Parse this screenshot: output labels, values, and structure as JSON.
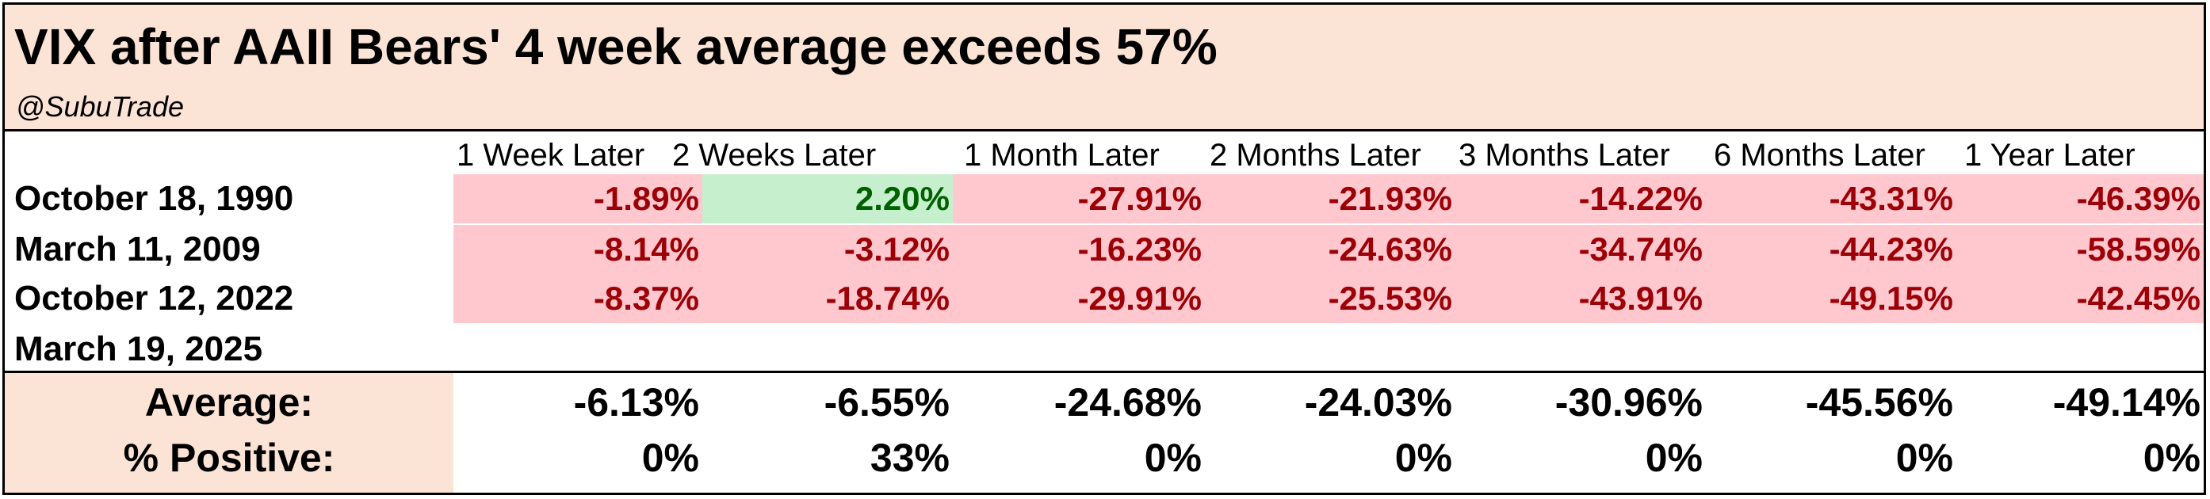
{
  "title": "VIX after AAII Bears' 4 week average exceeds 57%",
  "subtitle": "@SubuTrade",
  "colors": {
    "header_bg": "#fbe4d5",
    "negative_bg": "#ffc7ce",
    "negative_text": "#9c0006",
    "positive_bg": "#c6efce",
    "positive_text": "#006100"
  },
  "chart_data": {
    "type": "table",
    "columns": [
      "1 Week Later",
      "2 Weeks Later",
      "1 Month Later",
      "2 Months Later",
      "3 Months Later",
      "6 Months Later",
      "1 Year Later"
    ],
    "rows": [
      {
        "label": "October 18, 1990",
        "values": [
          "-1.89%",
          "2.20%",
          "-27.91%",
          "-21.93%",
          "-14.22%",
          "-43.31%",
          "-46.39%"
        ]
      },
      {
        "label": "March 11, 2009",
        "values": [
          "-8.14%",
          "-3.12%",
          "-16.23%",
          "-24.63%",
          "-34.74%",
          "-44.23%",
          "-58.59%"
        ]
      },
      {
        "label": "October 12, 2022",
        "values": [
          "-8.37%",
          "-18.74%",
          "-29.91%",
          "-25.53%",
          "-43.91%",
          "-49.15%",
          "-42.45%"
        ]
      },
      {
        "label": "March 19, 2025",
        "values": []
      }
    ],
    "summary": [
      {
        "label": "Average:",
        "values": [
          "-6.13%",
          "-6.55%",
          "-24.68%",
          "-24.03%",
          "-30.96%",
          "-45.56%",
          "-49.14%"
        ]
      },
      {
        "label": "% Positive:",
        "values": [
          "0%",
          "33%",
          "0%",
          "0%",
          "0%",
          "0%",
          "0%"
        ]
      }
    ]
  }
}
